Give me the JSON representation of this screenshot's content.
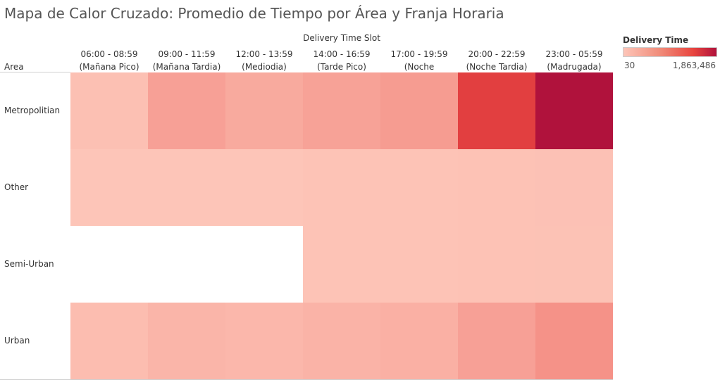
{
  "title": "Mapa de Calor Cruzado: Promedio de Tiempo por Área y Franja Horaria",
  "colors": {
    "scale_low": "#fdc5b8",
    "scale_high": "#b0123c",
    "empty": "#ffffff",
    "grid_line": "#ffffff"
  },
  "chart_data": {
    "type": "heatmap",
    "title": "Mapa de Calor Cruzado: Promedio de Tiempo por Área y Franja Horaria",
    "x_header": "Delivery Time Slot",
    "y_header": "Area",
    "columns": [
      {
        "line1": "06:00 - 08:59",
        "line2": "(Mañana Pico)"
      },
      {
        "line1": "09:00 - 11:59",
        "line2": "(Mañana Tardia)"
      },
      {
        "line1": "12:00 - 13:59",
        "line2": "(Mediodia)"
      },
      {
        "line1": "14:00 - 16:59",
        "line2": "(Tarde Pico)"
      },
      {
        "line1": "17:00 - 19:59",
        "line2": "(Noche Temprana)"
      },
      {
        "line1": "20:00 - 22:59",
        "line2": "(Noche Tardia)"
      },
      {
        "line1": "23:00 - 05:59",
        "line2": "(Madrugada)"
      }
    ],
    "rows": [
      "Metropolitian",
      "Other",
      "Semi-Urban",
      "Urban"
    ],
    "values": [
      [
        60000,
        400000,
        300000,
        380000,
        450000,
        1450000,
        1863486
      ],
      [
        30,
        30,
        30,
        20000,
        25000,
        30000,
        40000
      ],
      [
        null,
        null,
        null,
        20000,
        25000,
        30000,
        35000
      ],
      [
        90000,
        170000,
        150000,
        200000,
        230000,
        400000,
        560000
      ]
    ],
    "legend": {
      "title": "Delivery Time",
      "min_label": "30",
      "max_label": "1,863,486",
      "min": 30,
      "max": 1863486,
      "placement": "top-right"
    }
  }
}
